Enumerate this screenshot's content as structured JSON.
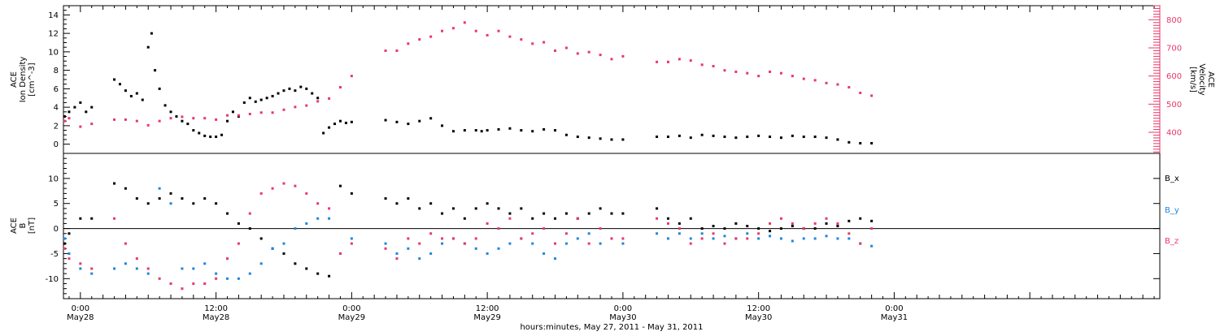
{
  "xaxis": {
    "title": "hours:minutes, May 27, 2011 - May 31, 2011",
    "range_hours": [
      -1.5,
      95.5
    ],
    "ticks": [
      {
        "hour": 0,
        "time": "0:00",
        "date": "May28"
      },
      {
        "hour": 12,
        "time": "12:00",
        "date": "May28"
      },
      {
        "hour": 24,
        "time": "0:00",
        "date": "May29"
      },
      {
        "hour": 36,
        "time": "12:00",
        "date": "May29"
      },
      {
        "hour": 48,
        "time": "0:00",
        "date": "May30"
      },
      {
        "hour": 60,
        "time": "12:00",
        "date": "May30"
      },
      {
        "hour": 72,
        "time": "0:00",
        "date": "May31"
      }
    ]
  },
  "colors": {
    "black": "#000000",
    "pink": "#e8386a",
    "blue": "#1f86e0"
  },
  "chart_data": [
    {
      "type": "scatter",
      "panel": "top",
      "ylabel_left": [
        "ACE",
        "Ion Density",
        "[cm^-3]"
      ],
      "ylabel_right": [
        "ACE",
        "Velocity",
        "[km/s]"
      ],
      "ylim_left": [
        -1,
        15
      ],
      "ylim_right": [
        325,
        850
      ],
      "yticks_left": [
        "0",
        "2",
        "4",
        "6",
        "8",
        "10",
        "12",
        "14"
      ],
      "yticks_right": [
        "400",
        "500",
        "600",
        "700",
        "800"
      ],
      "series": [
        {
          "color": "black",
          "axis": "left",
          "x": [
            -1.4,
            -1,
            -0.5,
            0,
            0.5,
            1,
            3,
            3.5,
            4,
            4.5,
            5,
            5.5,
            6,
            6.3,
            6.6,
            7,
            7.5,
            8,
            8.5,
            9,
            9.5,
            10,
            10.5,
            11,
            11.5,
            12,
            12.5,
            13,
            13.5,
            14,
            14.5,
            15,
            15.5,
            16,
            16.5,
            17,
            17.5,
            18,
            18.5,
            19,
            19.5,
            20,
            20.5,
            21,
            21.5,
            22,
            22.5,
            23,
            23.5,
            24,
            27,
            28,
            29,
            30,
            31,
            32,
            33,
            34,
            35,
            35.5,
            36,
            37,
            38,
            39,
            40,
            41,
            42,
            43,
            44,
            45,
            46,
            47,
            48,
            51,
            52,
            53,
            54,
            55,
            56,
            57,
            58,
            59,
            60,
            61,
            62,
            63,
            64,
            65,
            66,
            67,
            68,
            69,
            70
          ],
          "y": [
            3,
            3.5,
            4,
            4.5,
            3.5,
            4,
            7,
            6.5,
            5.8,
            5.2,
            5.5,
            4.8,
            10.5,
            12,
            8,
            6,
            4.2,
            3.5,
            3,
            2.5,
            2.2,
            1.5,
            1.2,
            0.9,
            0.8,
            0.8,
            1,
            2.5,
            3.5,
            3,
            4.5,
            5,
            4.6,
            4.8,
            5,
            5.2,
            5.5,
            5.8,
            6,
            5.8,
            6.2,
            6,
            5.5,
            5,
            1.2,
            1.8,
            2.2,
            2.5,
            2.3,
            2.4,
            2.6,
            2.4,
            2.2,
            2.5,
            2.8,
            2,
            1.4,
            1.5,
            1.5,
            1.4,
            1.5,
            1.6,
            1.7,
            1.5,
            1.4,
            1.6,
            1.5,
            1.0,
            0.8,
            0.7,
            0.6,
            0.5,
            0.5,
            0.8,
            0.8,
            0.9,
            0.7,
            1.0,
            0.9,
            0.8,
            0.7,
            0.8,
            0.9,
            0.8,
            0.7,
            0.9,
            0.8,
            0.8,
            0.7,
            0.5,
            0.2,
            0.1,
            0.1
          ]
        },
        {
          "color": "pink",
          "axis": "right",
          "x": [
            -1.4,
            -1,
            0,
            1,
            3,
            4,
            5,
            6,
            7,
            8,
            9,
            10,
            11,
            12,
            13,
            14,
            15,
            16,
            17,
            18,
            19,
            20,
            21,
            22,
            23,
            24,
            27,
            28,
            29,
            30,
            31,
            32,
            33,
            34,
            35,
            36,
            37,
            38,
            39,
            40,
            41,
            42,
            43,
            44,
            45,
            46,
            47,
            48,
            51,
            52,
            53,
            54,
            55,
            56,
            57,
            58,
            59,
            60,
            61,
            62,
            63,
            64,
            65,
            66,
            67,
            68,
            69,
            70
          ],
          "y": [
            440,
            450,
            420,
            430,
            445,
            445,
            440,
            425,
            440,
            450,
            455,
            450,
            450,
            445,
            460,
            460,
            465,
            470,
            470,
            480,
            490,
            495,
            510,
            520,
            560,
            600,
            690,
            690,
            715,
            730,
            740,
            760,
            770,
            790,
            760,
            745,
            760,
            740,
            730,
            715,
            720,
            690,
            700,
            680,
            685,
            675,
            660,
            670,
            650,
            650,
            660,
            655,
            640,
            635,
            620,
            615,
            610,
            600,
            615,
            610,
            600,
            590,
            585,
            575,
            570,
            560,
            540,
            530
          ]
        }
      ]
    },
    {
      "type": "scatter",
      "panel": "bottom",
      "ylabel": [
        "ACE",
        "B",
        "[nT]"
      ],
      "ylim": [
        -14,
        15
      ],
      "yticks": [
        "-10",
        "-5",
        "0",
        "5",
        "10"
      ],
      "legend": [
        "B_x",
        "B_y",
        "B_z"
      ],
      "series": [
        {
          "name": "B_x",
          "color": "black",
          "x": [
            -1.4,
            -1,
            0,
            1,
            3,
            4,
            5,
            6,
            7,
            8,
            9,
            10,
            11,
            12,
            13,
            14,
            15,
            16,
            17,
            18,
            19,
            20,
            21,
            22,
            23,
            24,
            27,
            28,
            29,
            30,
            31,
            32,
            33,
            34,
            35,
            36,
            37,
            38,
            39,
            40,
            41,
            42,
            43,
            44,
            45,
            46,
            47,
            48,
            51,
            52,
            53,
            54,
            55,
            56,
            57,
            58,
            59,
            60,
            61,
            62,
            63,
            64,
            65,
            66,
            67,
            68,
            69,
            70
          ],
          "y": [
            -3,
            -1,
            2,
            2,
            9,
            8,
            6,
            5,
            6,
            7,
            6,
            5,
            6,
            5,
            3,
            1,
            0,
            -2,
            -4,
            -5,
            -7,
            -8,
            -9,
            -9.5,
            8.5,
            7,
            6,
            5,
            6,
            4,
            5,
            3,
            4,
            2,
            4,
            5,
            4,
            3,
            4,
            2,
            3,
            2,
            3,
            2,
            3,
            4,
            3,
            3,
            4,
            2,
            1,
            2,
            0,
            0.5,
            0,
            1,
            0.5,
            0,
            -0.5,
            0,
            0.5,
            0,
            0,
            1,
            0.5,
            1.5,
            2,
            1.5
          ]
        },
        {
          "name": "B_y",
          "color": "blue",
          "x": [
            -1.4,
            -1,
            0,
            1,
            3,
            4,
            5,
            6,
            7,
            8,
            9,
            10,
            11,
            12,
            13,
            14,
            15,
            16,
            17,
            18,
            19,
            20,
            21,
            22,
            23,
            24,
            27,
            28,
            29,
            30,
            31,
            32,
            33,
            34,
            35,
            36,
            37,
            38,
            39,
            40,
            41,
            42,
            43,
            44,
            45,
            46,
            47,
            48,
            51,
            52,
            53,
            54,
            55,
            56,
            57,
            58,
            59,
            60,
            61,
            62,
            63,
            64,
            65,
            66,
            67,
            68,
            69,
            70
          ],
          "y": [
            -2,
            -5,
            -8,
            -9,
            -8,
            -7,
            -8,
            -9,
            8,
            5,
            -8,
            -8,
            -7,
            -9,
            -10,
            -10,
            -9,
            -7,
            -4,
            -3,
            0,
            1,
            2,
            2,
            -5,
            -2,
            -3,
            -5,
            -4,
            -6,
            -5,
            -3,
            -2,
            -3,
            -4,
            -5,
            -4,
            -3,
            -2,
            -3,
            -5,
            -6,
            -3,
            -2,
            -1,
            -3,
            -2,
            -3,
            -1,
            -2,
            -1,
            -2,
            -1,
            -2,
            -1.5,
            -2,
            -1,
            -2,
            -1.5,
            -2,
            -2.5,
            -2,
            -2,
            -1.5,
            -2,
            -2,
            -3,
            -3.5
          ]
        },
        {
          "name": "B_z",
          "color": "pink",
          "x": [
            -1.4,
            -1,
            0,
            1,
            3,
            4,
            5,
            6,
            7,
            8,
            9,
            10,
            11,
            12,
            13,
            14,
            15,
            16,
            17,
            18,
            19,
            20,
            21,
            22,
            23,
            24,
            27,
            28,
            29,
            30,
            31,
            32,
            33,
            34,
            35,
            36,
            37,
            38,
            39,
            40,
            41,
            42,
            43,
            44,
            45,
            46,
            47,
            48,
            51,
            52,
            53,
            54,
            55,
            56,
            57,
            58,
            59,
            60,
            61,
            62,
            63,
            64,
            65,
            66,
            67,
            68,
            69,
            70
          ],
          "y": [
            -4,
            -6,
            -7,
            -8,
            2,
            -3,
            -6,
            -8,
            -10,
            -11,
            -12,
            -11,
            -11,
            -10,
            -6,
            -3,
            3,
            7,
            8,
            9,
            8.5,
            7,
            5,
            4,
            -5,
            -3,
            -4,
            -6,
            -2,
            -3,
            -1,
            -2,
            -2,
            -3,
            -2,
            1,
            0,
            2,
            -2,
            -1,
            0,
            -3,
            -1,
            2,
            -3,
            0,
            -2,
            -2,
            2,
            1,
            0,
            -3,
            -2,
            -1,
            -3,
            -2,
            -2,
            -1,
            1,
            2,
            1,
            0,
            1,
            2,
            1,
            -1,
            -3,
            0
          ]
        }
      ]
    }
  ]
}
